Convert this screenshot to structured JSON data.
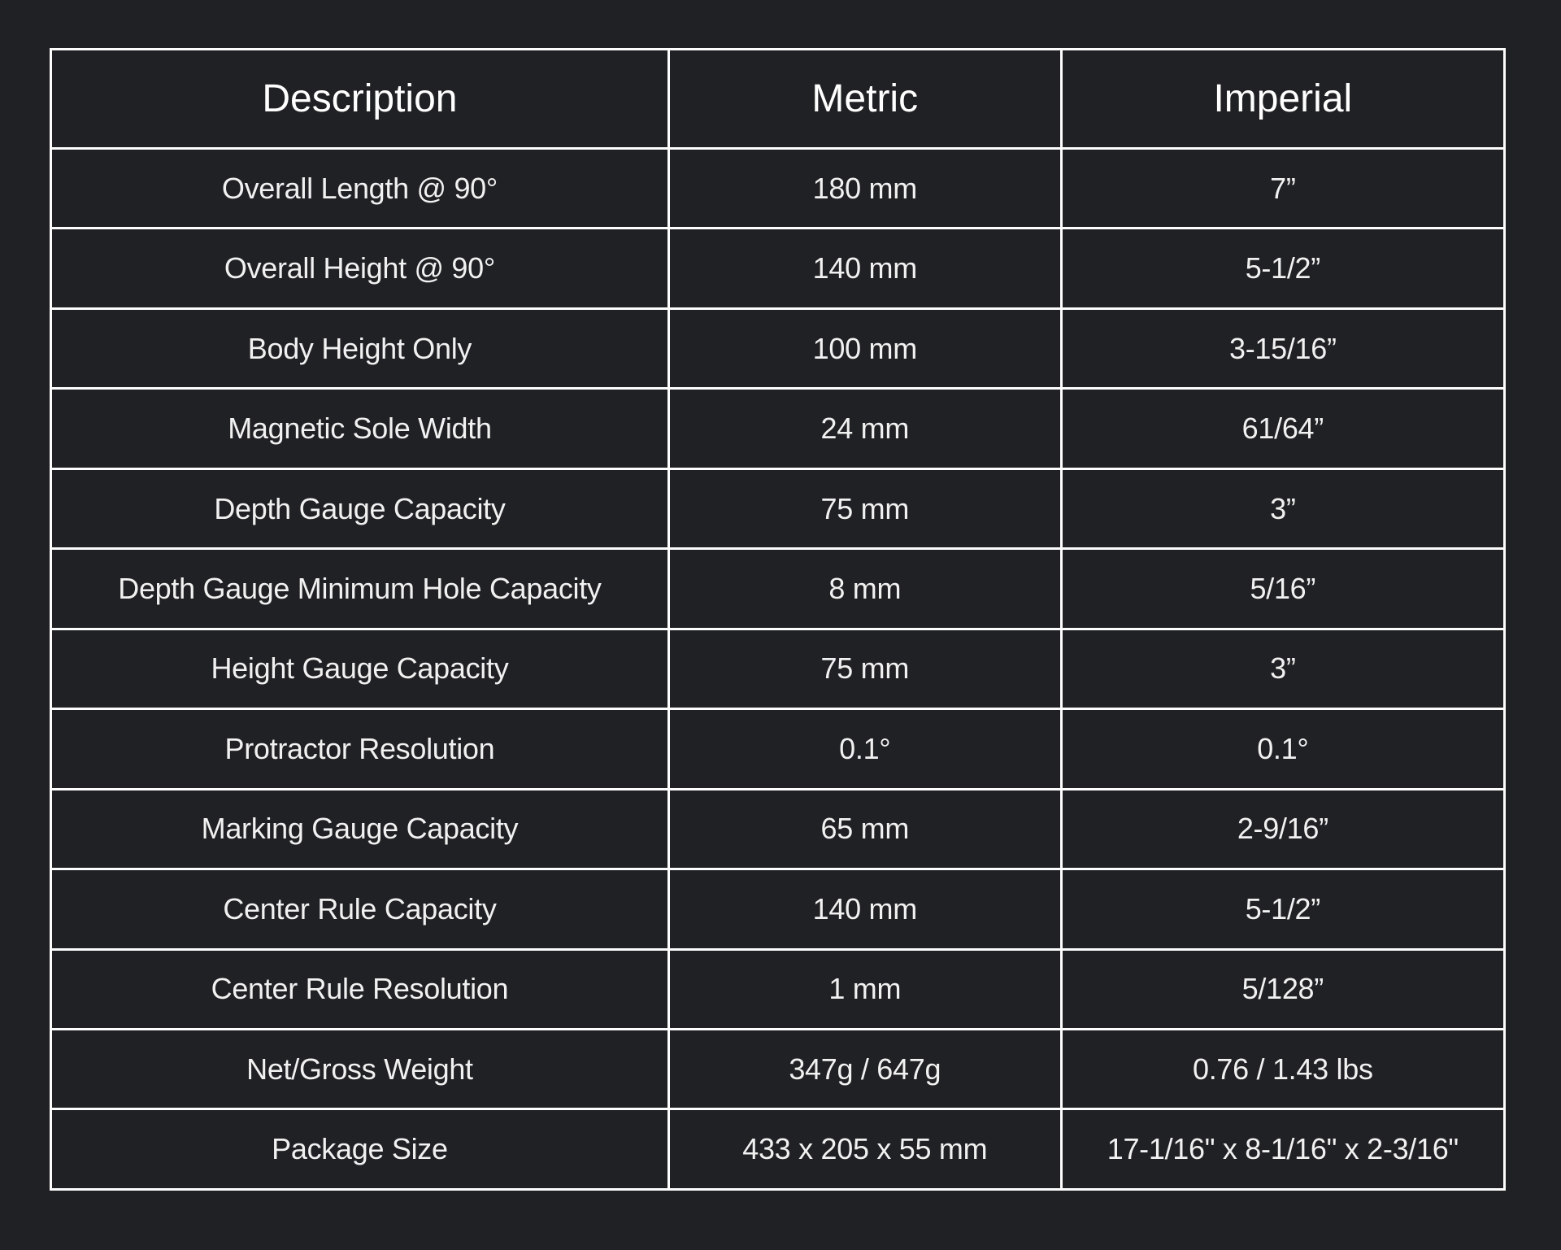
{
  "colors": {
    "page_background": "#202124",
    "cell_background": "#202124",
    "border": "#fdfdfd",
    "text": "#f1f1f1"
  },
  "table": {
    "columns": [
      "Description",
      "Metric",
      "Imperial"
    ],
    "rows": [
      {
        "description": "Overall Length @ 90°",
        "metric": "180 mm",
        "imperial": "7”"
      },
      {
        "description": "Overall Height @ 90°",
        "metric": "140 mm",
        "imperial": "5-1/2”"
      },
      {
        "description": "Body Height Only",
        "metric": "100 mm",
        "imperial": "3-15/16”"
      },
      {
        "description": "Magnetic Sole Width",
        "metric": "24 mm",
        "imperial": "61/64”"
      },
      {
        "description": "Depth Gauge Capacity",
        "metric": "75 mm",
        "imperial": "3”"
      },
      {
        "description": "Depth Gauge Minimum Hole Capacity",
        "metric": "8 mm",
        "imperial": "5/16”"
      },
      {
        "description": "Height Gauge Capacity",
        "metric": "75 mm",
        "imperial": "3”"
      },
      {
        "description": "Protractor Resolution",
        "metric": "0.1°",
        "imperial": "0.1°"
      },
      {
        "description": "Marking Gauge Capacity",
        "metric": "65 mm",
        "imperial": "2-9/16”"
      },
      {
        "description": "Center Rule Capacity",
        "metric": "140 mm",
        "imperial": "5-1/2”"
      },
      {
        "description": "Center Rule Resolution",
        "metric": "1 mm",
        "imperial": "5/128”"
      },
      {
        "description": "Net/Gross Weight",
        "metric": "347g / 647g",
        "imperial": "0.76 / 1.43 lbs"
      },
      {
        "description": "Package Size",
        "metric": "433 x 205 x 55 mm",
        "imperial": "17-1/16\" x 8-1/16\" x 2-3/16\""
      }
    ]
  }
}
